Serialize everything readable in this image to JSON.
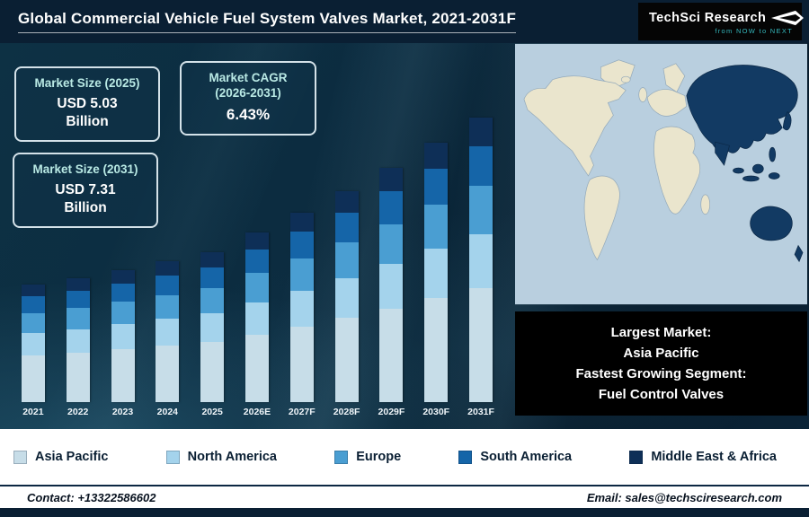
{
  "header": {
    "title": "Global Commercial Vehicle Fuel System Valves Market, 2021-2031F",
    "logo": {
      "brand": "TechSci Research",
      "tagline": "from NOW to NEXT"
    }
  },
  "callouts": [
    {
      "label": "Market Size (2025)",
      "value": "USD 5.03",
      "unit": "Billion"
    },
    {
      "label": "Market CAGR (2026-2031)",
      "value": "6.43%",
      "unit": ""
    },
    {
      "label": "Market Size (2031)",
      "value": "USD 7.31",
      "unit": "Billion"
    }
  ],
  "map_panel": {
    "lines": [
      "Largest Market:",
      "Asia Pacific",
      "Fastest Growing Segment:",
      "Fuel Control Valves"
    ],
    "colors": {
      "ocean": "#b9cfdf",
      "land": "#eae5cd",
      "highlight": "#123a63",
      "land-stroke": "#93a9ba"
    }
  },
  "footer": {
    "contact": "Contact: +13322586602",
    "email": "Email: sales@techsciresearch.com"
  },
  "chart_data": {
    "type": "bar",
    "stacked": true,
    "title": "Global Commercial Vehicle Fuel System Valves Market, 2021-2031F",
    "unit": "USD Billion",
    "categories": [
      "2021",
      "2022",
      "2023",
      "2024",
      "2025",
      "2026E",
      "2027F",
      "2028F",
      "2029F",
      "2030F",
      "2031F"
    ],
    "series": [
      {
        "name": "Asia Pacific",
        "color": "#c7dde8",
        "values": [
          1.79,
          1.84,
          1.89,
          1.95,
          2.01,
          2.14,
          2.28,
          2.42,
          2.58,
          2.75,
          2.92
        ]
      },
      {
        "name": "North America",
        "color": "#a4d3ec",
        "values": [
          0.85,
          0.87,
          0.9,
          0.93,
          0.96,
          1.02,
          1.08,
          1.15,
          1.23,
          1.31,
          1.39
        ]
      },
      {
        "name": "Europe",
        "color": "#4a9ed2",
        "values": [
          0.76,
          0.78,
          0.8,
          0.83,
          0.86,
          0.91,
          0.97,
          1.03,
          1.1,
          1.17,
          1.24
        ]
      },
      {
        "name": "South America",
        "color": "#1565a8",
        "values": [
          0.63,
          0.64,
          0.66,
          0.68,
          0.7,
          0.75,
          0.8,
          0.85,
          0.9,
          0.96,
          1.02
        ]
      },
      {
        "name": "Middle East & Africa",
        "color": "#0e2f57",
        "values": [
          0.45,
          0.46,
          0.47,
          0.49,
          0.5,
          0.54,
          0.57,
          0.61,
          0.65,
          0.69,
          0.73
        ]
      }
    ],
    "annotations": [
      "Market Size (2025): USD 5.03 Billion",
      "Market Size (2031): USD 7.31 Billion",
      "Market CAGR (2026-2031): 6.43%"
    ],
    "ylim": [
      2.5,
      7.5
    ],
    "grid": false,
    "legend_position": "bottom"
  }
}
